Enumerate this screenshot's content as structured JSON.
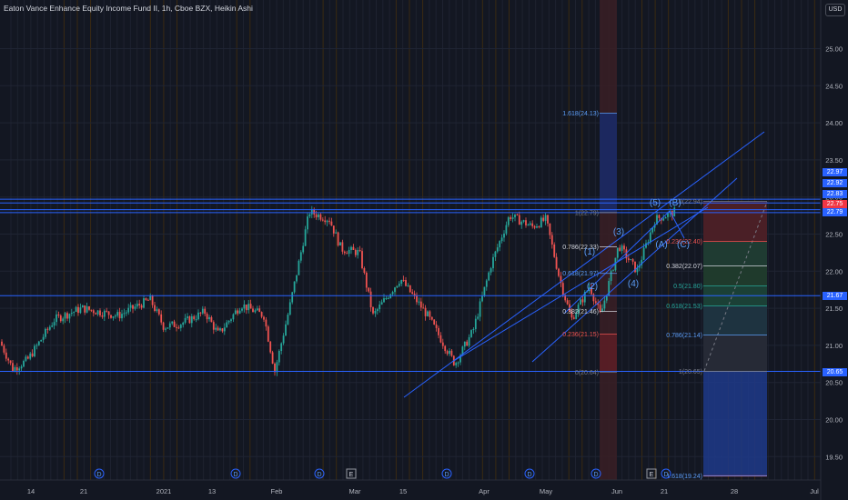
{
  "header": {
    "symbol_line": "Eaton Vance Enhance Equity Income Fund II, 1h, Cboe BZX, Heikin Ashi",
    "currency_button": "USD"
  },
  "price_axis": {
    "tick_labels": [
      "25.00",
      "24.50",
      "24.00",
      "23.50",
      "23.00",
      "22.50",
      "22.00",
      "21.50",
      "21.00",
      "20.50",
      "20.00",
      "19.50"
    ]
  },
  "price_tags": [
    {
      "label": "22.97",
      "color": "#2962ff"
    },
    {
      "label": "22.92",
      "color": "#2962ff"
    },
    {
      "label": "22.83",
      "color": "#2962ff"
    },
    {
      "label": "22.75",
      "color": "#f23645"
    },
    {
      "label": "22.79",
      "color": "#2962ff"
    },
    {
      "label": "21.67",
      "color": "#2962ff"
    },
    {
      "label": "20.65",
      "color": "#2962ff"
    }
  ],
  "time_axis": {
    "labels": [
      "14",
      "21",
      "2021",
      "13",
      "Feb",
      "Mar",
      "15",
      "Apr",
      "May",
      "Jun",
      "21",
      "28",
      "Jul"
    ]
  },
  "event_markers": [
    "D",
    "D",
    "D",
    "E",
    "D",
    "D",
    "D",
    "E",
    "D"
  ],
  "fib_retracement_1": {
    "levels": [
      "1.618(24.13)",
      "1(22.79)",
      "0.786(22.33)",
      "0.618(21.97)",
      "0.382(21.46)",
      "0.236(21.15)",
      "0(20.64)"
    ]
  },
  "fib_retracement_2": {
    "levels": [
      "0(22.94)",
      "0.236(22.40)",
      "0.382(22.07)",
      "0.5(21.80)",
      "0.618(21.53)",
      "0.786(21.14)",
      "1(20.65)",
      "1.618(19.24)"
    ]
  },
  "elliott_labels": [
    "(1)",
    "(2)",
    "(3)",
    "(4)",
    "(5)",
    "(A)",
    "(B)",
    "(C)"
  ],
  "colors": {
    "background": "#131722",
    "up": "#26a69a",
    "down": "#ef5350",
    "line": "#2962ff",
    "accent": "#2962ff"
  }
}
